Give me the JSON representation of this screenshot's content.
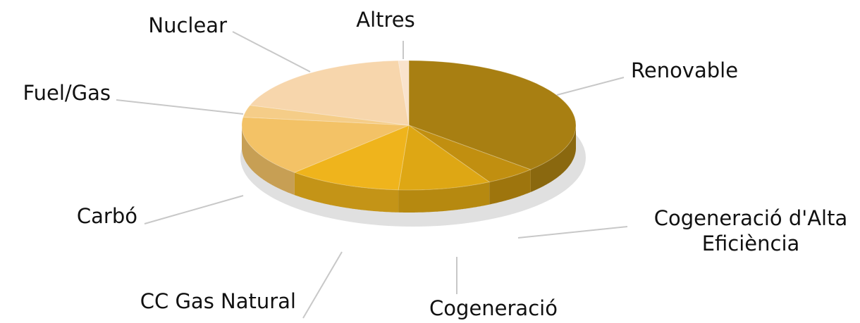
{
  "chart_data": {
    "type": "pie",
    "categories": [
      "Renovable",
      "Cogeneració d'Alta Eficiència",
      "Cogeneració",
      "CC Gas Natural",
      "Carbó",
      "Fuel/Gas",
      "Nuclear",
      "Altres"
    ],
    "values": [
      37,
      5,
      9,
      11,
      15,
      3,
      19,
      1
    ],
    "colors": [
      "#a87f12",
      "#c18f10",
      "#dea714",
      "#efb41c",
      "#f3c266",
      "#f5cd88",
      "#f7d6ac",
      "#f9e3cc"
    ]
  }
}
